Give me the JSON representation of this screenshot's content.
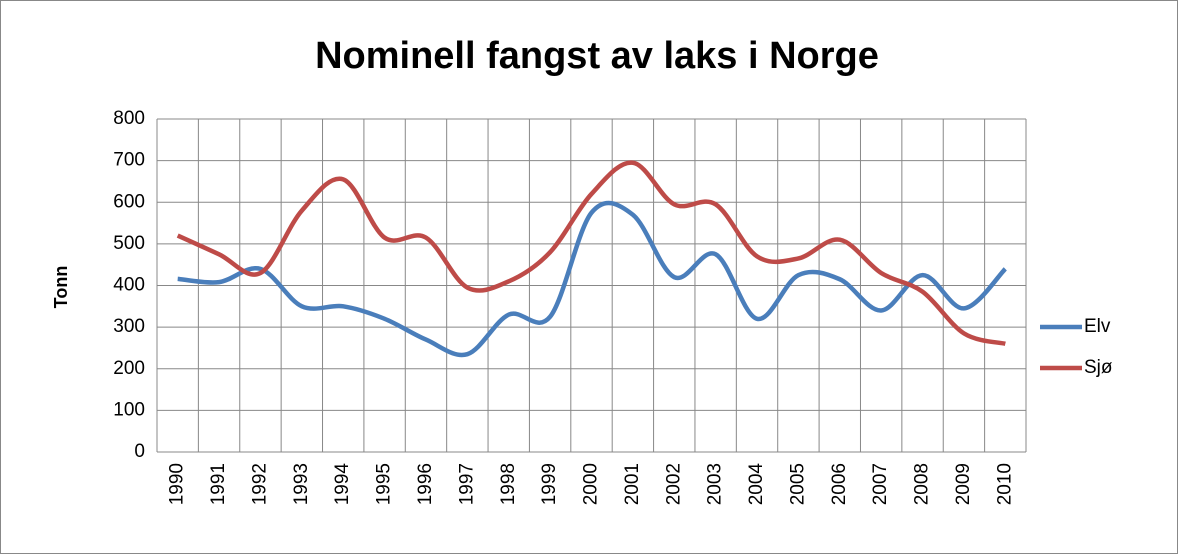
{
  "chart_data": {
    "type": "line",
    "title": "Nominell fangst av laks i Norge",
    "y_label": "Tonn",
    "categories": [
      "1990",
      "1991",
      "1992",
      "1993",
      "1994",
      "1995",
      "1996",
      "1997",
      "1998",
      "1999",
      "2000",
      "2001",
      "2002",
      "2003",
      "2004",
      "2005",
      "2006",
      "2007",
      "2008",
      "2009",
      "2010"
    ],
    "series": [
      {
        "name": "Elv",
        "color": "#4a7ebb",
        "values": [
          416,
          408,
          440,
          350,
          350,
          320,
          270,
          235,
          330,
          325,
          575,
          570,
          420,
          475,
          320,
          425,
          415,
          340,
          425,
          345,
          440
        ]
      },
      {
        "name": "Sjø",
        "color": "#be4b48",
        "values": [
          520,
          475,
          430,
          580,
          655,
          515,
          515,
          395,
          410,
          480,
          620,
          695,
          595,
          595,
          470,
          465,
          510,
          430,
          385,
          285,
          260
        ]
      }
    ],
    "ylim": [
      0,
      800
    ],
    "yticks": [
      0,
      100,
      200,
      300,
      400,
      500,
      600,
      700,
      800
    ],
    "grid": true,
    "smooth": true,
    "legend": "right"
  }
}
